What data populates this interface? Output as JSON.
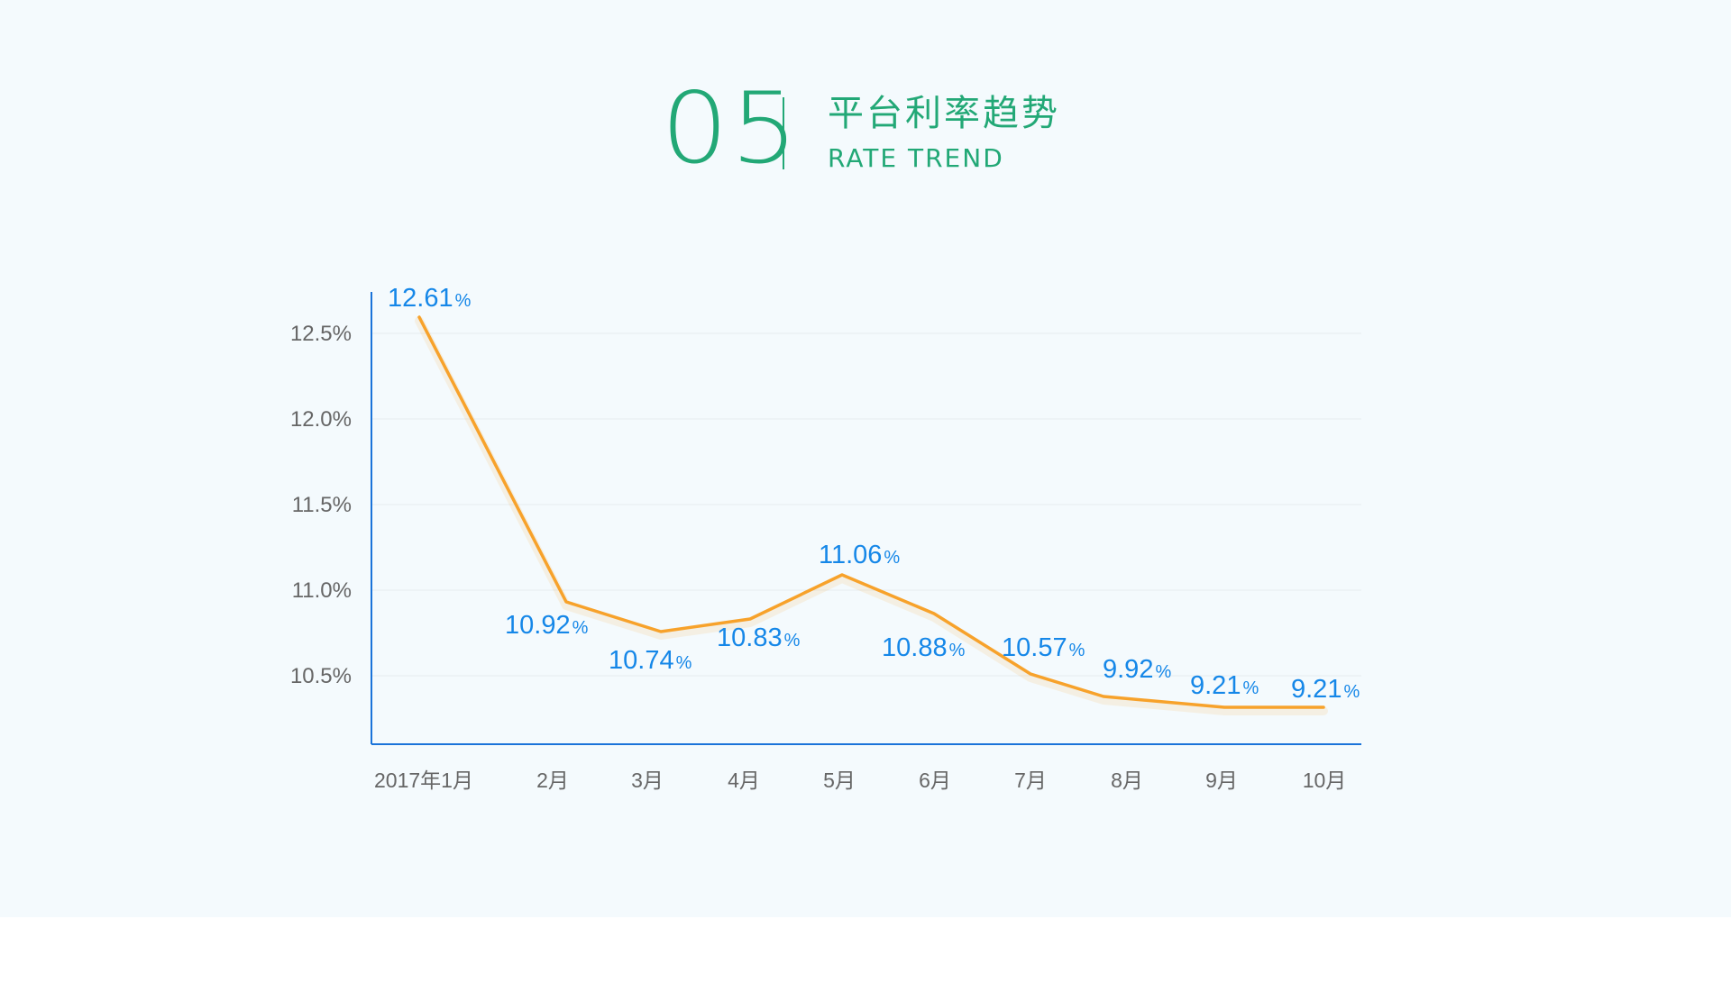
{
  "header": {
    "number": "05",
    "title": "平台利率趋势",
    "subtitle": "RATE TREND"
  },
  "colors": {
    "background": "#f4fafd",
    "accent": "#22a876",
    "axis": "#1a73d9",
    "line": "#f7a22b",
    "label": "#1587e8",
    "tick": "#666666"
  },
  "chart_data": {
    "type": "line",
    "categories": [
      "2017年1月",
      "2月",
      "3月",
      "4月",
      "5月",
      "6月",
      "7月",
      "8月",
      "9月",
      "10月"
    ],
    "values": [
      12.61,
      10.92,
      10.74,
      10.83,
      11.06,
      10.88,
      10.57,
      9.92,
      9.21,
      9.21
    ],
    "y_ticks": [
      "12.5%",
      "12.0%",
      "11.5%",
      "11.0%",
      "10.5%"
    ],
    "y_tick_values": [
      12.5,
      12.0,
      11.5,
      11.0,
      10.5
    ],
    "label_suffix": "%",
    "grid": true,
    "legend": "none"
  }
}
